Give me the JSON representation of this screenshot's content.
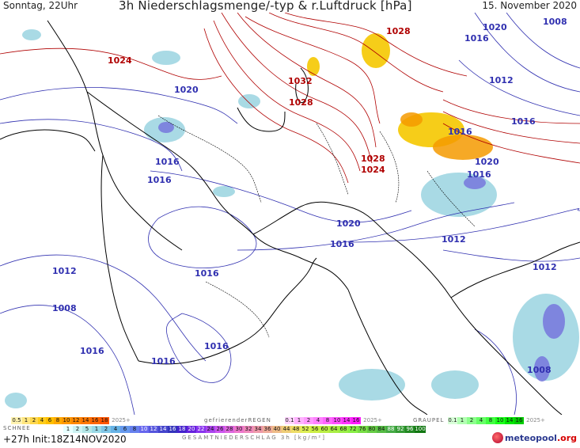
{
  "header": {
    "left": "Sonntag, 22Uhr",
    "center": "3h Niederschlagsmenge/-typ & r.Luftdruck [hPa]",
    "right": "15. November 2020"
  },
  "isobar_labels": [
    {
      "text": "1024",
      "color": "#b00000"
    },
    {
      "text": "1020",
      "color": "#3030b0"
    },
    {
      "text": "1016",
      "color": "#3030b0"
    },
    {
      "text": "1016",
      "color": "#3030b0"
    },
    {
      "text": "1032",
      "color": "#b00000"
    },
    {
      "text": "1028",
      "color": "#b00000"
    },
    {
      "text": "1028",
      "color": "#b00000"
    },
    {
      "text": "1028",
      "color": "#b00000"
    },
    {
      "text": "1024",
      "color": "#b00000"
    },
    {
      "text": "1016",
      "color": "#3030b0"
    },
    {
      "text": "1020",
      "color": "#3030b0"
    },
    {
      "text": "1008",
      "color": "#3030b0"
    },
    {
      "text": "1012",
      "color": "#3030b0"
    },
    {
      "text": "1016",
      "color": "#3030b0"
    },
    {
      "text": "1016",
      "color": "#3030b0"
    },
    {
      "text": "1020",
      "color": "#3030b0"
    },
    {
      "text": "1016",
      "color": "#3030b0"
    },
    {
      "text": "1020",
      "color": "#3030b0"
    },
    {
      "text": "1016",
      "color": "#3030b0"
    },
    {
      "text": "1012",
      "color": "#3030b0"
    },
    {
      "text": "1012",
      "color": "#3030b0"
    },
    {
      "text": "1016",
      "color": "#3030b0"
    },
    {
      "text": "1012",
      "color": "#3030b0"
    },
    {
      "text": "1008",
      "color": "#3030b0"
    },
    {
      "text": "1016",
      "color": "#3030b0"
    },
    {
      "text": "1016",
      "color": "#3030b0"
    },
    {
      "text": "1016",
      "color": "#3030b0"
    },
    {
      "text": "1008",
      "color": "#3030b0"
    }
  ],
  "legend": {
    "rain_title": "SCHNEE",
    "rain_scale": [
      "1",
      "2",
      "5",
      "1",
      "2",
      "4",
      "6",
      "8",
      "10",
      "12",
      "14",
      "16",
      "18",
      "20",
      "22",
      "24",
      "26",
      "28",
      "30",
      "32",
      "34",
      "36",
      "40",
      "44",
      "48",
      "52",
      "56",
      "60",
      "64",
      "68",
      "72",
      "76",
      "80",
      "84",
      "88",
      "92",
      "96",
      "100"
    ],
    "snow_scale": [
      "0.5",
      "1",
      "2",
      "4",
      "6",
      "8",
      "10",
      "12",
      "14",
      "16",
      "18",
      "2025+"
    ],
    "freezing_title": "gefrierenderREGEN",
    "freezing_scale": [
      "0.1",
      "1",
      "2",
      "4",
      "8",
      "10",
      "14",
      "16",
      "2025+"
    ],
    "graupel_title": "GRAUPEL",
    "graupel_scale": [
      "0.1",
      "1",
      "2",
      "4",
      "8",
      "10",
      "14",
      "16",
      "2025+"
    ],
    "total_title": "GESAMTNIEDERSCHLAG 3h [kg/m²]"
  },
  "footer": {
    "init": "+27h  Init:18Z14NOV2020",
    "brand_main": "meteopool",
    "brand_tld": ".org"
  },
  "colors": {
    "high_isobar": "#b00000",
    "low_isobar": "#3030b0",
    "rain_light": "#9ad4e0",
    "rain_mid": "#7777dd",
    "snow_yellow": "#f5c800",
    "snow_orange": "#f59a00",
    "coast": "#000000"
  }
}
